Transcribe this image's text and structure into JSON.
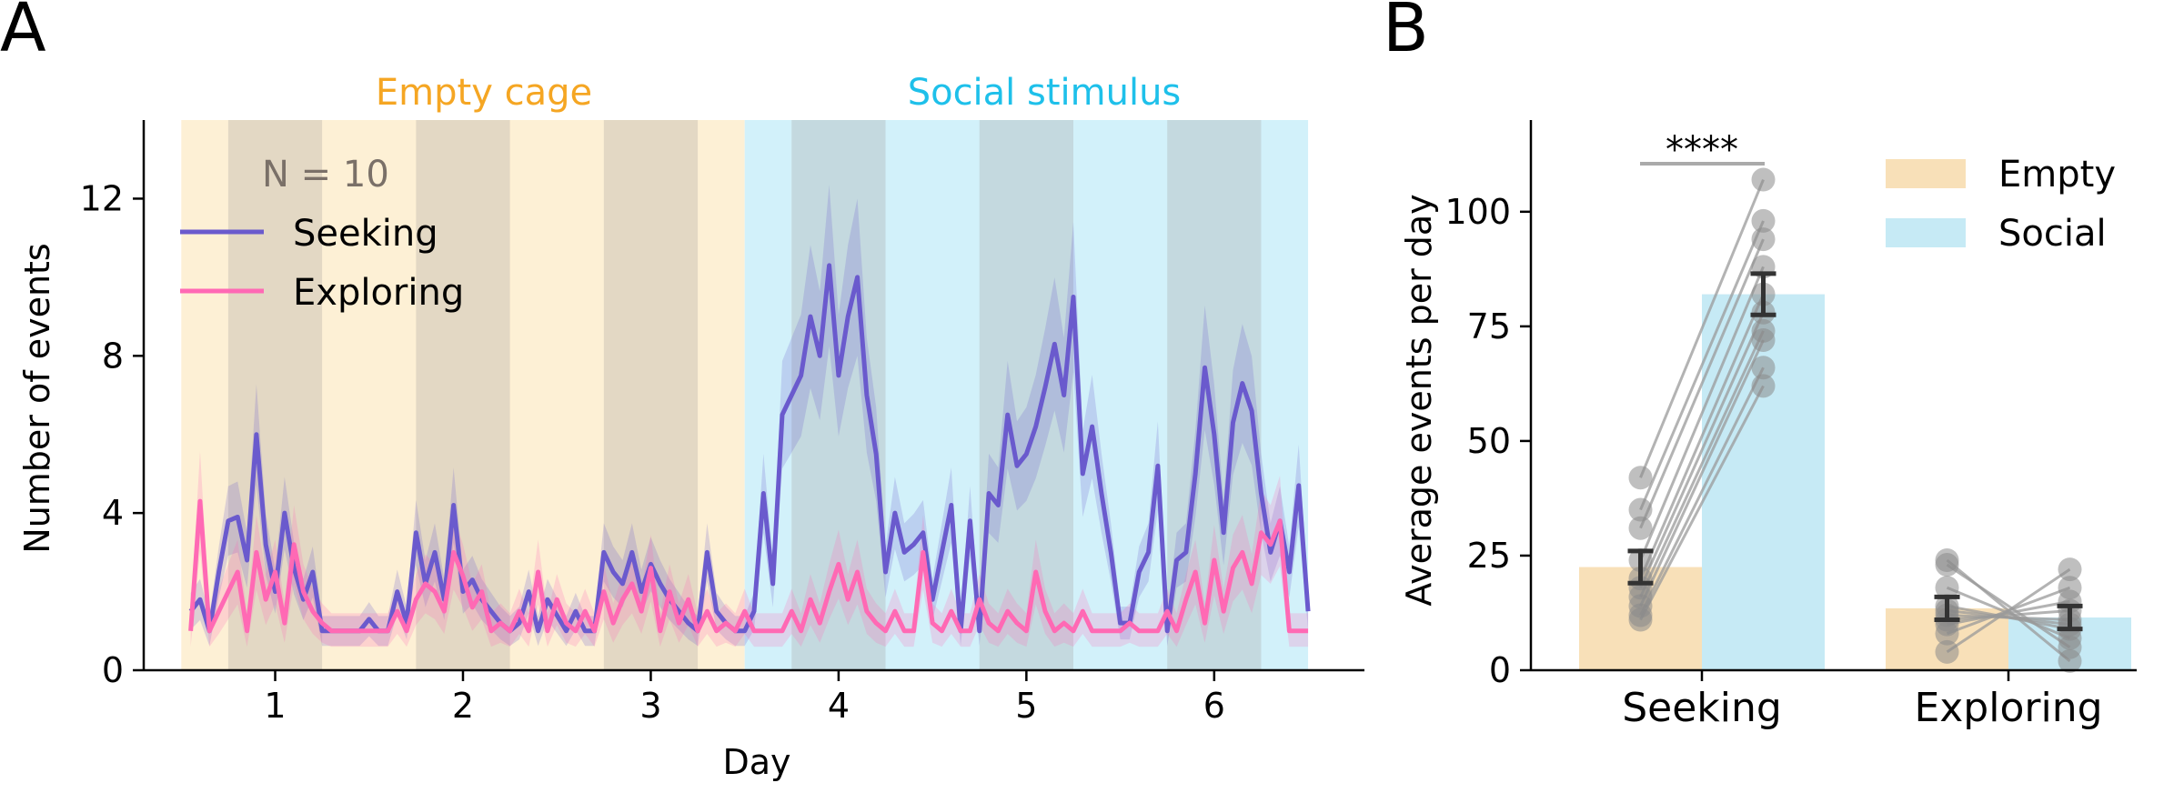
{
  "chart_data": [
    {
      "panel": "A",
      "type": "line",
      "xlabel": "Day",
      "ylabel": "Number of events",
      "xlim": [
        0.3,
        6.8
      ],
      "ylim": [
        0,
        14
      ],
      "xticks": [
        1,
        2,
        3,
        4,
        5,
        6
      ],
      "yticks": [
        0,
        4,
        8,
        12
      ],
      "annotations": {
        "period_left": "Empty cage",
        "period_right": "Social stimulus",
        "n_label": "N = 10"
      },
      "legend": {
        "placement": "top-left"
      },
      "colors": {
        "seeking": "#6a5acd",
        "exploring": "#ff69b4",
        "empty": "#f5a623",
        "social": "#1ec0ea",
        "empty_bg": "#fdf0d5",
        "social_bg": "#d2f1fa",
        "dark_shade": "#a09a9a"
      },
      "dark_phases": [
        [
          0.75,
          1.25
        ],
        [
          1.75,
          2.25
        ],
        [
          2.75,
          3.25
        ],
        [
          3.75,
          4.25
        ],
        [
          4.75,
          5.25
        ],
        [
          5.75,
          6.25
        ]
      ],
      "empty_span": [
        0.5,
        3.5
      ],
      "social_span": [
        3.5,
        6.5
      ],
      "x": [
        0.55,
        0.6,
        0.65,
        0.7,
        0.75,
        0.8,
        0.85,
        0.9,
        0.95,
        1.0,
        1.05,
        1.1,
        1.15,
        1.2,
        1.25,
        1.3,
        1.35,
        1.4,
        1.45,
        1.5,
        1.55,
        1.6,
        1.65,
        1.7,
        1.75,
        1.8,
        1.85,
        1.9,
        1.95,
        2.0,
        2.05,
        2.1,
        2.15,
        2.2,
        2.25,
        2.3,
        2.35,
        2.4,
        2.45,
        2.5,
        2.55,
        2.6,
        2.65,
        2.7,
        2.75,
        2.8,
        2.85,
        2.9,
        2.95,
        3.0,
        3.05,
        3.1,
        3.15,
        3.2,
        3.25,
        3.3,
        3.35,
        3.4,
        3.45,
        3.5,
        3.55,
        3.6,
        3.65,
        3.7,
        3.75,
        3.8,
        3.85,
        3.9,
        3.95,
        4.0,
        4.05,
        4.1,
        4.15,
        4.2,
        4.25,
        4.3,
        4.35,
        4.4,
        4.45,
        4.5,
        4.55,
        4.6,
        4.65,
        4.7,
        4.75,
        4.8,
        4.85,
        4.9,
        4.95,
        5.0,
        5.05,
        5.1,
        5.15,
        5.2,
        5.25,
        5.3,
        5.35,
        5.4,
        5.45,
        5.5,
        5.55,
        5.6,
        5.65,
        5.7,
        5.75,
        5.8,
        5.85,
        5.9,
        5.95,
        6.0,
        6.05,
        6.1,
        6.15,
        6.2,
        6.25,
        6.3,
        6.35,
        6.4,
        6.45,
        6.5
      ],
      "series": [
        {
          "name": "Seeking",
          "color": "#6a5acd",
          "values": [
            1.5,
            1.8,
            1.0,
            2.5,
            3.8,
            3.9,
            2.8,
            6.0,
            3.2,
            2.0,
            4.0,
            2.6,
            1.8,
            2.5,
            1.0,
            1.0,
            1.0,
            1.0,
            1.0,
            1.3,
            1.0,
            1.0,
            2.0,
            1.2,
            3.5,
            2.2,
            3.0,
            1.8,
            4.2,
            2.0,
            2.3,
            1.8,
            1.5,
            1.2,
            1.0,
            1.2,
            2.0,
            1.0,
            1.8,
            1.4,
            1.0,
            1.5,
            1.0,
            1.0,
            3.0,
            2.5,
            2.2,
            3.0,
            2.0,
            2.7,
            2.2,
            1.8,
            1.5,
            1.2,
            1.0,
            3.0,
            1.5,
            1.2,
            1.0,
            1.0,
            1.5,
            4.5,
            2.2,
            6.5,
            7.0,
            7.5,
            9.0,
            8.0,
            10.3,
            7.5,
            9.0,
            10.0,
            7.0,
            5.5,
            2.5,
            4.0,
            3.0,
            3.2,
            3.5,
            1.8,
            3.0,
            4.2,
            1.0,
            3.8,
            1.0,
            4.5,
            4.2,
            6.5,
            5.2,
            5.5,
            6.2,
            7.2,
            8.3,
            7.0,
            9.5,
            5.0,
            6.2,
            4.5,
            3.0,
            1.2,
            1.2,
            2.5,
            3.0,
            5.2,
            1.0,
            2.8,
            3.0,
            5.0,
            7.7,
            6.0,
            3.5,
            6.3,
            7.3,
            6.6,
            4.5,
            3.0,
            3.8,
            2.5,
            4.7,
            1.5
          ]
        },
        {
          "name": "Exploring",
          "color": "#ff69b4",
          "values": [
            1.0,
            4.3,
            1.0,
            1.5,
            2.0,
            2.5,
            1.0,
            3.0,
            1.8,
            2.5,
            1.2,
            3.2,
            2.0,
            1.5,
            1.2,
            1.0,
            1.0,
            1.0,
            1.0,
            1.0,
            1.0,
            1.0,
            1.5,
            1.0,
            1.8,
            2.2,
            2.0,
            1.5,
            3.0,
            2.4,
            1.6,
            2.0,
            1.0,
            1.2,
            1.0,
            1.5,
            1.0,
            2.5,
            1.0,
            1.8,
            1.2,
            1.0,
            1.5,
            1.0,
            2.0,
            1.2,
            1.8,
            2.2,
            1.5,
            2.6,
            1.0,
            2.0,
            1.2,
            1.8,
            1.0,
            1.5,
            1.0,
            1.2,
            1.0,
            1.5,
            1.0,
            1.0,
            1.0,
            1.0,
            1.5,
            1.0,
            1.8,
            1.2,
            2.0,
            2.7,
            1.8,
            2.5,
            1.5,
            1.2,
            1.0,
            1.5,
            1.0,
            1.0,
            3.0,
            1.2,
            1.0,
            1.5,
            1.0,
            1.0,
            1.8,
            1.2,
            1.0,
            1.5,
            1.2,
            1.0,
            2.5,
            1.5,
            1.0,
            1.2,
            1.0,
            1.5,
            1.0,
            1.0,
            1.0,
            1.0,
            1.2,
            1.0,
            1.0,
            1.0,
            1.5,
            1.0,
            1.8,
            2.5,
            1.2,
            2.8,
            1.5,
            2.6,
            3.0,
            2.2,
            3.5,
            3.2,
            3.8,
            1.0,
            1.0,
            1.0
          ]
        }
      ]
    },
    {
      "panel": "B",
      "type": "bar",
      "ylabel": "Average events per day",
      "ylim": [
        0,
        120
      ],
      "yticks": [
        0,
        25,
        50,
        75,
        100
      ],
      "categories": [
        "Seeking",
        "Exploring"
      ],
      "series": [
        {
          "name": "Empty",
          "color": "#f8e0b8",
          "values": [
            22.5,
            13.5
          ],
          "sem": [
            3.5,
            2.5
          ]
        },
        {
          "name": "Social",
          "color": "#c6eaf5",
          "values": [
            82.0,
            11.5
          ],
          "sem": [
            4.5,
            2.5
          ]
        }
      ],
      "significance": {
        "label": "****",
        "between": "Seeking"
      },
      "paired_points": [
        {
          "category": "Seeking",
          "empty": [
            11,
            12,
            14,
            16,
            18,
            20,
            24,
            31,
            35,
            42
          ],
          "social": [
            62,
            66,
            72,
            74,
            78,
            82,
            88,
            94,
            98,
            107
          ]
        },
        {
          "category": "Exploring",
          "empty": [
            4,
            8,
            10,
            11,
            12,
            13,
            14,
            18,
            23,
            24
          ],
          "social": [
            22,
            18,
            15,
            13,
            11,
            10,
            9,
            7,
            5,
            2
          ]
        }
      ],
      "legend": {
        "placement": "top-right"
      }
    }
  ],
  "panel_letters": {
    "a": "A",
    "b": "B"
  }
}
